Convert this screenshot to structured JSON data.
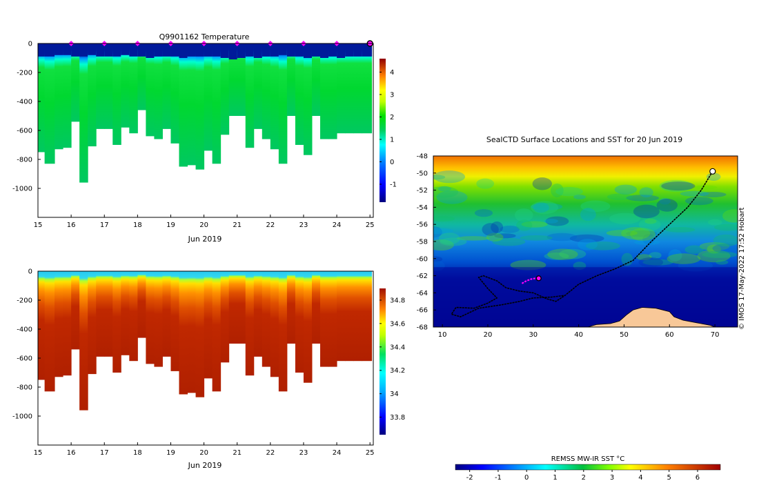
{
  "chart_data": [
    {
      "type": "heatmap",
      "id": "temperature-section",
      "title": "Q9901162  Temperature",
      "xlabel": "Jun 2019",
      "ylabel": "",
      "x_ticks": [
        15,
        16,
        17,
        18,
        19,
        20,
        21,
        22,
        23,
        24,
        25
      ],
      "y_ticks": [
        0,
        -200,
        -400,
        -600,
        -800,
        -1000
      ],
      "xlim": [
        15,
        25.1
      ],
      "ylim": [
        -1200,
        0
      ],
      "colorbar": {
        "min": -1.8,
        "max": 4.6,
        "ticks": [
          -1,
          0,
          1,
          2,
          3,
          4
        ]
      },
      "surface_markers_day": [
        16,
        17,
        18,
        19,
        20,
        21,
        22,
        23,
        24
      ],
      "current_marker_day": 25,
      "profiles_day": [
        15.0,
        15.2,
        15.5,
        15.75,
        16.0,
        16.25,
        16.5,
        16.75,
        17.0,
        17.25,
        17.5,
        17.75,
        18.0,
        18.25,
        18.5,
        18.75,
        19.0,
        19.25,
        19.5,
        19.75,
        20.0,
        20.25,
        20.5,
        20.75,
        21.0,
        21.25,
        21.5,
        21.75,
        22.0,
        22.25,
        22.5,
        22.75,
        23.0,
        23.25,
        23.5,
        23.75,
        24.0,
        24.25,
        24.5,
        24.75
      ],
      "profiles_max_depth_m": [
        750,
        830,
        730,
        720,
        540,
        960,
        710,
        590,
        590,
        700,
        580,
        620,
        460,
        640,
        660,
        590,
        690,
        850,
        840,
        870,
        740,
        830,
        630,
        500,
        500,
        720,
        590,
        660,
        730,
        830,
        500,
        700,
        770,
        500,
        660,
        660,
        620,
        620,
        620,
        620
      ],
      "profiles_surface_layer_m": [
        90,
        90,
        80,
        80,
        90,
        90,
        80,
        90,
        90,
        90,
        80,
        90,
        90,
        100,
        90,
        90,
        90,
        100,
        90,
        90,
        90,
        90,
        100,
        110,
        100,
        90,
        100,
        90,
        90,
        80,
        90,
        90,
        100,
        90,
        100,
        90,
        100,
        90,
        90,
        90
      ],
      "colorbar_label": ""
    },
    {
      "type": "heatmap",
      "id": "salinity-section",
      "title": "",
      "xlabel": "Jun 2019",
      "ylabel": "",
      "x_ticks": [
        15,
        16,
        17,
        18,
        19,
        20,
        21,
        22,
        23,
        24,
        25
      ],
      "y_ticks": [
        0,
        -200,
        -400,
        -600,
        -800,
        -1000
      ],
      "xlim": [
        15,
        25.1
      ],
      "ylim": [
        -1200,
        0
      ],
      "colorbar": {
        "min": 33.65,
        "max": 34.9,
        "ticks": [
          33.8,
          34,
          34.2,
          34.4,
          34.6,
          34.8
        ]
      }
    },
    {
      "type": "heatmap",
      "id": "sst-map",
      "title": "SealCTD Surface Locations and SST for 20 Jun 2019",
      "x_ticks": [
        10,
        20,
        30,
        40,
        50,
        60,
        70
      ],
      "y_ticks": [
        -48,
        -50,
        -52,
        -54,
        -56,
        -58,
        -60,
        -62,
        -64,
        -66,
        -68
      ],
      "xlim": [
        8,
        75
      ],
      "ylim": [
        -68,
        -48
      ],
      "colorbar": {
        "title": "REMSS MW-IR SST °C",
        "min": -2.5,
        "max": 6.8,
        "ticks": [
          -2,
          -1,
          0,
          1,
          2,
          3,
          4,
          5,
          6
        ]
      },
      "track_black_lonlat": [
        [
          69.5,
          -49.8
        ],
        [
          67,
          -52
        ],
        [
          64,
          -54
        ],
        [
          60,
          -56
        ],
        [
          56,
          -58
        ],
        [
          52,
          -60.2
        ],
        [
          48,
          -61.2
        ],
        [
          44,
          -62
        ],
        [
          40,
          -63
        ],
        [
          37,
          -64.3
        ],
        [
          35,
          -65
        ],
        [
          33,
          -64.7
        ],
        [
          30,
          -64
        ],
        [
          27,
          -63.8
        ],
        [
          24,
          -63.4
        ],
        [
          22,
          -62.6
        ],
        [
          19,
          -62
        ],
        [
          18,
          -62.2
        ],
        [
          20,
          -63.5
        ],
        [
          22,
          -64.6
        ],
        [
          20,
          -65.2
        ],
        [
          17,
          -65.8
        ],
        [
          13,
          -65.7
        ],
        [
          12,
          -66.5
        ],
        [
          14,
          -66.8
        ],
        [
          18,
          -65.8
        ],
        [
          23,
          -65.4
        ],
        [
          27,
          -65
        ],
        [
          30,
          -64.6
        ],
        [
          34,
          -64.5
        ],
        [
          37,
          -64.3
        ]
      ],
      "track_magenta_lonlat": [
        [
          27.5,
          -62.9
        ],
        [
          28.5,
          -62.6
        ],
        [
          29.5,
          -62.4
        ],
        [
          30.5,
          -62.3
        ]
      ],
      "current_position_lonlat": [
        31.2,
        -62.3
      ],
      "antarctica_lonlat": [
        [
          42,
          -68
        ],
        [
          44,
          -67.7
        ],
        [
          47,
          -67.6
        ],
        [
          49,
          -67.3
        ],
        [
          50.5,
          -66.6
        ],
        [
          52,
          -66
        ],
        [
          54,
          -65.7
        ],
        [
          57,
          -65.8
        ],
        [
          60,
          -66.2
        ],
        [
          61,
          -66.8
        ],
        [
          63,
          -67.2
        ],
        [
          66,
          -67.5
        ],
        [
          69,
          -67.8
        ],
        [
          70,
          -68
        ]
      ]
    }
  ],
  "credit": "© IMOS 17-May-2022 17:52 Hobart"
}
